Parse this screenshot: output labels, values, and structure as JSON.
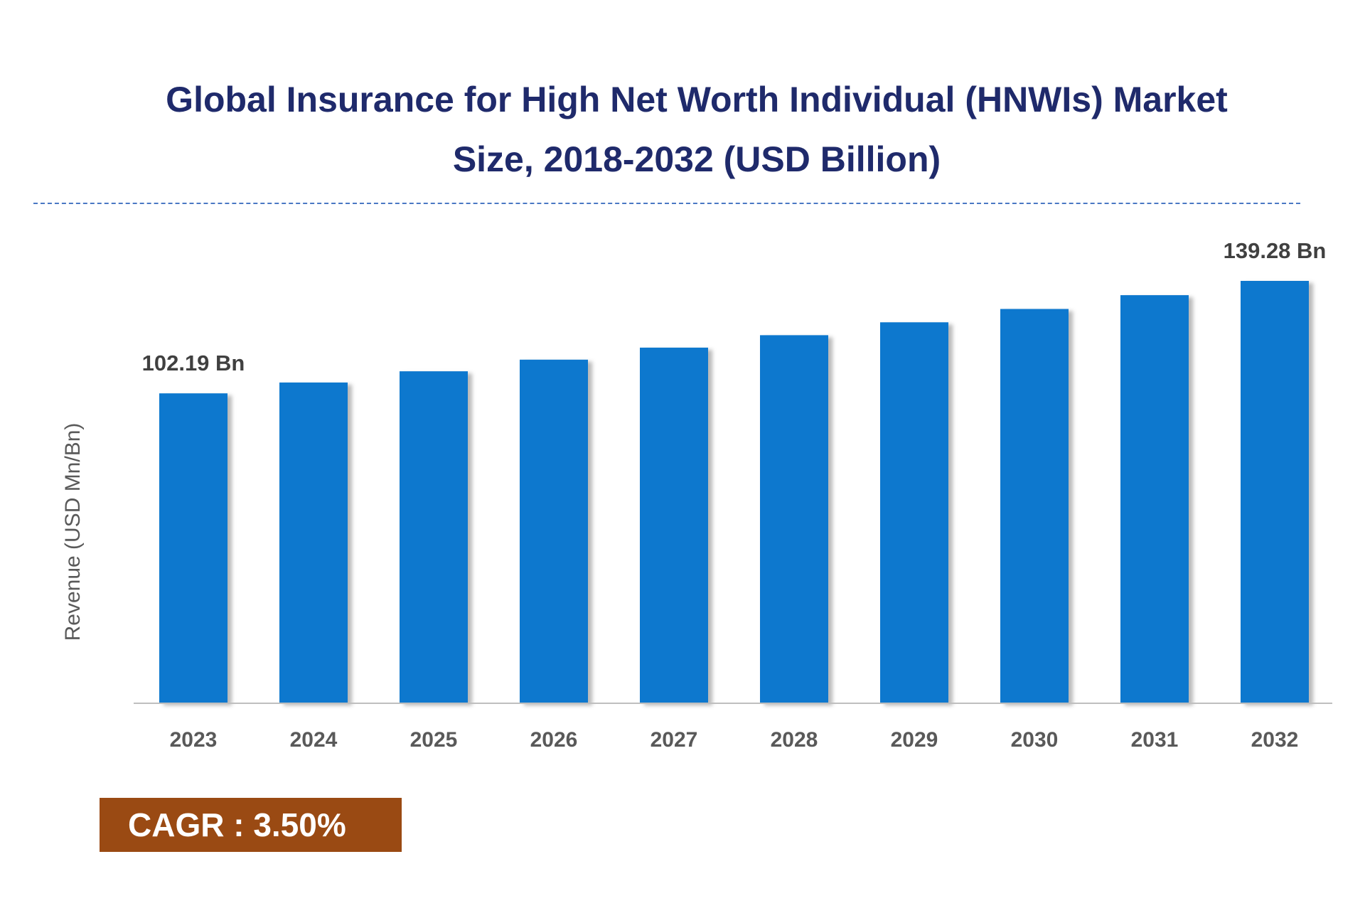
{
  "title_lines": [
    "Global Insurance for High Net Worth Individual (HNWIs) Market",
    "Size, 2018-2032 (USD Billion)"
  ],
  "cagr": "CAGR :  3.50%",
  "colors": {
    "bar": "#0a78ce",
    "title": "#1f2a6b",
    "cagr_bg": "#9a4a13",
    "divider": "#4a78c4"
  },
  "chart_data": {
    "type": "bar",
    "title": "Global Insurance for High Net Worth Individual (HNWIs) Market Size, 2018-2032 (USD Billion)",
    "ylabel": "Revenue (USD Mn/Bn)",
    "xlabel": "",
    "categories": [
      "2023",
      "2024",
      "2025",
      "2026",
      "2027",
      "2028",
      "2029",
      "2030",
      "2031",
      "2032"
    ],
    "values": [
      102.19,
      105.77,
      109.47,
      113.3,
      117.27,
      121.37,
      125.62,
      130.02,
      134.57,
      139.28
    ],
    "data_labels": [
      {
        "category": "2023",
        "text": "102.19 Bn"
      },
      {
        "category": "2032",
        "text": "139.28 Bn"
      }
    ],
    "ylim": [
      0,
      139.28
    ],
    "grid": false,
    "legend": "none"
  }
}
